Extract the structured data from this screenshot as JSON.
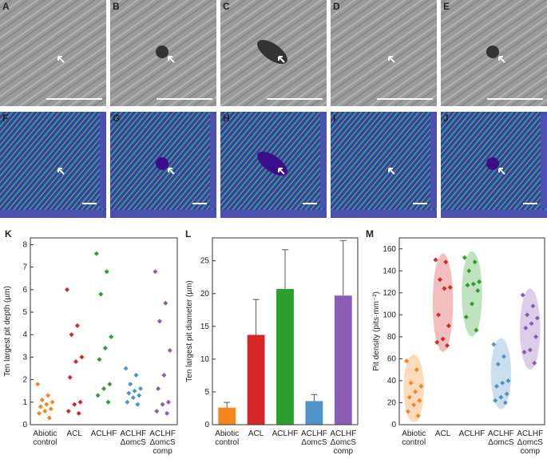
{
  "image_panels": [
    "A",
    "B",
    "C",
    "D",
    "E",
    "F",
    "G",
    "H",
    "I",
    "J"
  ],
  "chart_data": [
    {
      "type": "strip",
      "panel": "K",
      "ylabel": "Ten largest pit depth (µm)",
      "categories": [
        "Abiotic control",
        "ACL",
        "ACLHF",
        "ACLHF ΔomcS",
        "ACLHF ΔomcS comp"
      ],
      "colors": [
        "#f7851e",
        "#d62728",
        "#2ca02c",
        "#4f94c8",
        "#8c5bb5"
      ],
      "values": [
        [
          1.8,
          1.3,
          1.1,
          1.0,
          0.9,
          0.8,
          0.7,
          0.6,
          0.5,
          0.3
        ],
        [
          6.0,
          4.4,
          4.0,
          3.0,
          2.8,
          2.1,
          1.0,
          0.9,
          0.6,
          0.5
        ],
        [
          7.6,
          6.8,
          5.8,
          3.9,
          3.4,
          2.9,
          1.8,
          1.6,
          1.3,
          1.0
        ],
        [
          2.5,
          2.2,
          1.8,
          1.6,
          1.5,
          1.4,
          1.3,
          1.2,
          1.0,
          0.9
        ],
        [
          6.8,
          5.4,
          4.6,
          3.3,
          2.2,
          1.6,
          1.0,
          0.9,
          0.6,
          0.5
        ]
      ],
      "ylim": [
        0,
        8.3
      ],
      "yticks": [
        0,
        1,
        2,
        3,
        4,
        5,
        6,
        7,
        8
      ],
      "ellipse": false
    },
    {
      "type": "bar",
      "panel": "L",
      "ylabel": "Ten largest pit diameter (µm)",
      "categories": [
        "Abiotic control",
        "ACL",
        "ACLHF",
        "ACLHF ΔomcS",
        "ACLHF ΔomcS comp"
      ],
      "colors": [
        "#f7851e",
        "#d62728",
        "#2ca02c",
        "#4f94c8",
        "#8c5bb5"
      ],
      "values": [
        2.6,
        13.7,
        20.7,
        3.6,
        19.7
      ],
      "errors": [
        0.8,
        5.4,
        6.0,
        1.0,
        8.4
      ],
      "ylim": [
        0,
        28.5
      ],
      "yticks": [
        0,
        5,
        10,
        15,
        20,
        25
      ]
    },
    {
      "type": "strip",
      "panel": "M",
      "ylabel": "Pit density (pits·mm⁻²)",
      "categories": [
        "Abiotic control",
        "ACL",
        "ACLHF",
        "ACLHF ΔomcS",
        "ACLHF ΔomcS comp"
      ],
      "colors": [
        "#f7851e",
        "#d62728",
        "#2ca02c",
        "#4f94c8",
        "#8c5bb5"
      ],
      "values": [
        [
          58,
          50,
          38,
          35,
          30,
          25,
          22,
          18,
          12,
          8
        ],
        [
          150,
          148,
          132,
          125,
          124,
          100,
          90,
          78,
          75,
          72
        ],
        [
          152,
          148,
          140,
          130,
          128,
          127,
          122,
          110,
          98,
          86
        ],
        [
          73,
          62,
          55,
          40,
          38,
          35,
          28,
          25,
          22,
          20
        ],
        [
          118,
          108,
          100,
          97,
          92,
          88,
          80,
          68,
          66,
          56
        ]
      ],
      "ylim": [
        0,
        170
      ],
      "yticks": [
        0,
        20,
        40,
        60,
        80,
        100,
        120,
        140,
        160
      ],
      "ellipse": true
    }
  ]
}
